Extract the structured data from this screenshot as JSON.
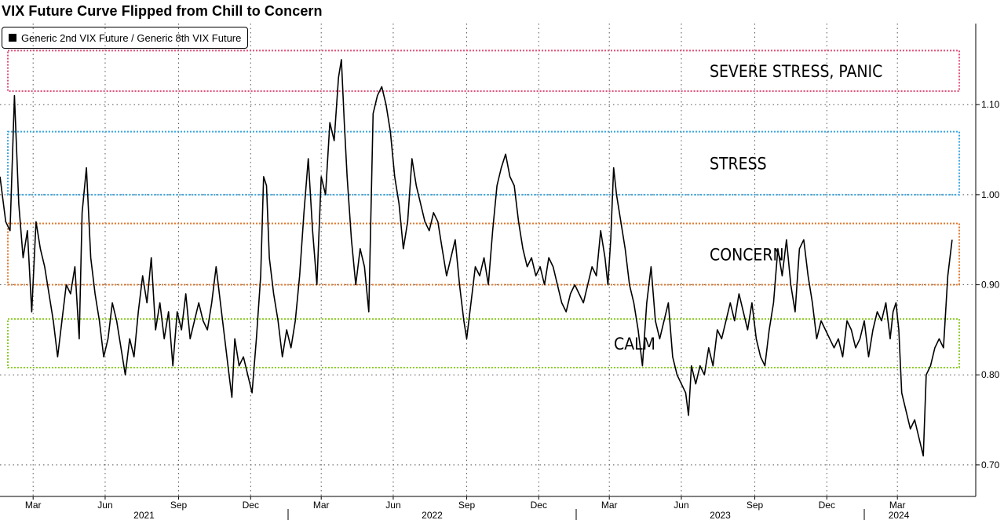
{
  "title": "VIX Future Curve Flipped from Chill to Concern",
  "legend": {
    "label": "Generic 2nd VIX Future / Generic 8th VIX Future"
  },
  "zones": [
    {
      "label": "SEVERE STRESS, PANIC",
      "low": 1.115,
      "high": 1.16,
      "color": "#e0507a"
    },
    {
      "label": "STRESS",
      "low": 1.0,
      "high": 1.07,
      "color": "#3aa6e0"
    },
    {
      "label": "CONCERN",
      "low": 0.9,
      "high": 0.968,
      "color": "#e07a30"
    },
    {
      "label": "CALM",
      "low": 0.808,
      "high": 0.862,
      "color": "#8ccc2a"
    }
  ],
  "chart_data": {
    "type": "line",
    "title": "VIX Future Curve Flipped from Chill to Concern",
    "ylim": [
      0.665,
      1.19
    ],
    "yticks": [
      "0.70",
      "0.80",
      "0.90",
      "1.00",
      "1.10"
    ],
    "grid": true,
    "legend_position": "top-left",
    "x_axis": {
      "months": [
        {
          "label": "Mar",
          "d": 0.115
        },
        {
          "label": "Jun",
          "d": 0.365
        },
        {
          "label": "Sep",
          "d": 0.62
        },
        {
          "label": "Dec",
          "d": 0.87
        },
        {
          "label": "Mar",
          "d": 1.115
        },
        {
          "label": "Jun",
          "d": 1.365
        },
        {
          "label": "Sep",
          "d": 1.62
        },
        {
          "label": "Dec",
          "d": 1.87
        },
        {
          "label": "Mar",
          "d": 2.115
        },
        {
          "label": "Jun",
          "d": 2.365
        },
        {
          "label": "Sep",
          "d": 2.62
        },
        {
          "label": "Dec",
          "d": 2.87
        },
        {
          "label": "Mar",
          "d": 3.115
        }
      ],
      "years": [
        {
          "label": "2021",
          "d": 0.5
        },
        {
          "label": "2022",
          "d": 1.5
        },
        {
          "label": "2023",
          "d": 2.5
        },
        {
          "label": "2024",
          "d": 3.12
        }
      ],
      "year_boundaries": [
        1.0,
        2.0,
        3.0
      ]
    },
    "series": [
      {
        "name": "Generic 2nd VIX Future / Generic 8th VIX Future",
        "color": "#000000",
        "points": [
          [
            0.0,
            1.02
          ],
          [
            0.02,
            0.97
          ],
          [
            0.035,
            0.96
          ],
          [
            0.05,
            1.11
          ],
          [
            0.065,
            0.99
          ],
          [
            0.08,
            0.93
          ],
          [
            0.095,
            0.96
          ],
          [
            0.11,
            0.87
          ],
          [
            0.125,
            0.97
          ],
          [
            0.14,
            0.94
          ],
          [
            0.155,
            0.92
          ],
          [
            0.17,
            0.89
          ],
          [
            0.185,
            0.86
          ],
          [
            0.2,
            0.82
          ],
          [
            0.215,
            0.86
          ],
          [
            0.23,
            0.9
          ],
          [
            0.245,
            0.89
          ],
          [
            0.26,
            0.92
          ],
          [
            0.275,
            0.84
          ],
          [
            0.285,
            0.98
          ],
          [
            0.3,
            1.03
          ],
          [
            0.315,
            0.93
          ],
          [
            0.33,
            0.89
          ],
          [
            0.345,
            0.86
          ],
          [
            0.36,
            0.82
          ],
          [
            0.375,
            0.84
          ],
          [
            0.39,
            0.88
          ],
          [
            0.405,
            0.86
          ],
          [
            0.42,
            0.83
          ],
          [
            0.435,
            0.8
          ],
          [
            0.45,
            0.84
          ],
          [
            0.465,
            0.82
          ],
          [
            0.48,
            0.87
          ],
          [
            0.495,
            0.91
          ],
          [
            0.51,
            0.88
          ],
          [
            0.525,
            0.93
          ],
          [
            0.54,
            0.85
          ],
          [
            0.555,
            0.88
          ],
          [
            0.57,
            0.84
          ],
          [
            0.585,
            0.87
          ],
          [
            0.6,
            0.81
          ],
          [
            0.615,
            0.87
          ],
          [
            0.63,
            0.85
          ],
          [
            0.645,
            0.89
          ],
          [
            0.66,
            0.84
          ],
          [
            0.675,
            0.86
          ],
          [
            0.69,
            0.88
          ],
          [
            0.705,
            0.86
          ],
          [
            0.72,
            0.85
          ],
          [
            0.735,
            0.88
          ],
          [
            0.75,
            0.92
          ],
          [
            0.765,
            0.88
          ],
          [
            0.78,
            0.84
          ],
          [
            0.795,
            0.8
          ],
          [
            0.805,
            0.775
          ],
          [
            0.815,
            0.84
          ],
          [
            0.83,
            0.81
          ],
          [
            0.845,
            0.82
          ],
          [
            0.86,
            0.8
          ],
          [
            0.875,
            0.78
          ],
          [
            0.89,
            0.84
          ],
          [
            0.905,
            0.91
          ],
          [
            0.915,
            1.02
          ],
          [
            0.925,
            1.01
          ],
          [
            0.935,
            0.93
          ],
          [
            0.95,
            0.89
          ],
          [
            0.965,
            0.86
          ],
          [
            0.98,
            0.82
          ],
          [
            0.995,
            0.85
          ],
          [
            1.01,
            0.83
          ],
          [
            1.025,
            0.86
          ],
          [
            1.04,
            0.91
          ],
          [
            1.055,
            0.98
          ],
          [
            1.07,
            1.04
          ],
          [
            1.085,
            0.96
          ],
          [
            1.1,
            0.9
          ],
          [
            1.115,
            1.02
          ],
          [
            1.13,
            1.0
          ],
          [
            1.145,
            1.08
          ],
          [
            1.16,
            1.06
          ],
          [
            1.175,
            1.13
          ],
          [
            1.185,
            1.15
          ],
          [
            1.195,
            1.08
          ],
          [
            1.205,
            1.02
          ],
          [
            1.22,
            0.95
          ],
          [
            1.235,
            0.9
          ],
          [
            1.25,
            0.94
          ],
          [
            1.265,
            0.92
          ],
          [
            1.28,
            0.87
          ],
          [
            1.295,
            1.09
          ],
          [
            1.31,
            1.11
          ],
          [
            1.325,
            1.12
          ],
          [
            1.34,
            1.1
          ],
          [
            1.355,
            1.07
          ],
          [
            1.37,
            1.02
          ],
          [
            1.385,
            0.99
          ],
          [
            1.4,
            0.94
          ],
          [
            1.415,
            0.97
          ],
          [
            1.43,
            1.04
          ],
          [
            1.445,
            1.01
          ],
          [
            1.46,
            0.99
          ],
          [
            1.475,
            0.97
          ],
          [
            1.49,
            0.96
          ],
          [
            1.505,
            0.98
          ],
          [
            1.52,
            0.97
          ],
          [
            1.535,
            0.94
          ],
          [
            1.55,
            0.91
          ],
          [
            1.565,
            0.93
          ],
          [
            1.58,
            0.95
          ],
          [
            1.595,
            0.9
          ],
          [
            1.61,
            0.86
          ],
          [
            1.62,
            0.84
          ],
          [
            1.635,
            0.88
          ],
          [
            1.65,
            0.92
          ],
          [
            1.665,
            0.91
          ],
          [
            1.68,
            0.93
          ],
          [
            1.695,
            0.9
          ],
          [
            1.71,
            0.96
          ],
          [
            1.725,
            1.01
          ],
          [
            1.74,
            1.03
          ],
          [
            1.755,
            1.045
          ],
          [
            1.77,
            1.02
          ],
          [
            1.785,
            1.01
          ],
          [
            1.8,
            0.97
          ],
          [
            1.815,
            0.94
          ],
          [
            1.83,
            0.92
          ],
          [
            1.845,
            0.93
          ],
          [
            1.86,
            0.91
          ],
          [
            1.875,
            0.92
          ],
          [
            1.89,
            0.9
          ],
          [
            1.905,
            0.93
          ],
          [
            1.92,
            0.92
          ],
          [
            1.935,
            0.9
          ],
          [
            1.95,
            0.88
          ],
          [
            1.965,
            0.87
          ],
          [
            1.98,
            0.89
          ],
          [
            1.995,
            0.9
          ],
          [
            2.01,
            0.89
          ],
          [
            2.025,
            0.88
          ],
          [
            2.04,
            0.9
          ],
          [
            2.055,
            0.92
          ],
          [
            2.07,
            0.91
          ],
          [
            2.085,
            0.96
          ],
          [
            2.1,
            0.93
          ],
          [
            2.11,
            0.9
          ],
          [
            2.12,
            0.95
          ],
          [
            2.13,
            1.03
          ],
          [
            2.14,
            1.0
          ],
          [
            2.155,
            0.97
          ],
          [
            2.17,
            0.94
          ],
          [
            2.185,
            0.9
          ],
          [
            2.2,
            0.88
          ],
          [
            2.215,
            0.85
          ],
          [
            2.23,
            0.81
          ],
          [
            2.245,
            0.88
          ],
          [
            2.26,
            0.92
          ],
          [
            2.275,
            0.86
          ],
          [
            2.29,
            0.84
          ],
          [
            2.305,
            0.86
          ],
          [
            2.32,
            0.88
          ],
          [
            2.335,
            0.82
          ],
          [
            2.35,
            0.8
          ],
          [
            2.365,
            0.79
          ],
          [
            2.38,
            0.78
          ],
          [
            2.39,
            0.755
          ],
          [
            2.4,
            0.81
          ],
          [
            2.415,
            0.79
          ],
          [
            2.43,
            0.81
          ],
          [
            2.445,
            0.8
          ],
          [
            2.46,
            0.83
          ],
          [
            2.475,
            0.81
          ],
          [
            2.49,
            0.85
          ],
          [
            2.505,
            0.84
          ],
          [
            2.52,
            0.86
          ],
          [
            2.535,
            0.88
          ],
          [
            2.55,
            0.86
          ],
          [
            2.565,
            0.89
          ],
          [
            2.58,
            0.87
          ],
          [
            2.595,
            0.85
          ],
          [
            2.61,
            0.88
          ],
          [
            2.625,
            0.84
          ],
          [
            2.64,
            0.82
          ],
          [
            2.655,
            0.81
          ],
          [
            2.67,
            0.85
          ],
          [
            2.685,
            0.88
          ],
          [
            2.7,
            0.94
          ],
          [
            2.715,
            0.91
          ],
          [
            2.73,
            0.95
          ],
          [
            2.745,
            0.9
          ],
          [
            2.76,
            0.87
          ],
          [
            2.775,
            0.94
          ],
          [
            2.79,
            0.95
          ],
          [
            2.805,
            0.91
          ],
          [
            2.82,
            0.88
          ],
          [
            2.835,
            0.84
          ],
          [
            2.85,
            0.86
          ],
          [
            2.865,
            0.85
          ],
          [
            2.88,
            0.84
          ],
          [
            2.895,
            0.83
          ],
          [
            2.91,
            0.84
          ],
          [
            2.925,
            0.82
          ],
          [
            2.94,
            0.86
          ],
          [
            2.955,
            0.85
          ],
          [
            2.97,
            0.83
          ],
          [
            2.985,
            0.84
          ],
          [
            3.0,
            0.86
          ],
          [
            3.015,
            0.82
          ],
          [
            3.03,
            0.85
          ],
          [
            3.045,
            0.87
          ],
          [
            3.06,
            0.86
          ],
          [
            3.075,
            0.88
          ],
          [
            3.09,
            0.84
          ],
          [
            3.1,
            0.87
          ],
          [
            3.11,
            0.88
          ],
          [
            3.12,
            0.85
          ],
          [
            3.13,
            0.78
          ],
          [
            3.145,
            0.76
          ],
          [
            3.16,
            0.74
          ],
          [
            3.175,
            0.75
          ],
          [
            3.19,
            0.73
          ],
          [
            3.205,
            0.71
          ],
          [
            3.215,
            0.8
          ],
          [
            3.23,
            0.81
          ],
          [
            3.245,
            0.83
          ],
          [
            3.26,
            0.84
          ],
          [
            3.275,
            0.83
          ],
          [
            3.29,
            0.91
          ],
          [
            3.305,
            0.95
          ]
        ]
      }
    ]
  }
}
